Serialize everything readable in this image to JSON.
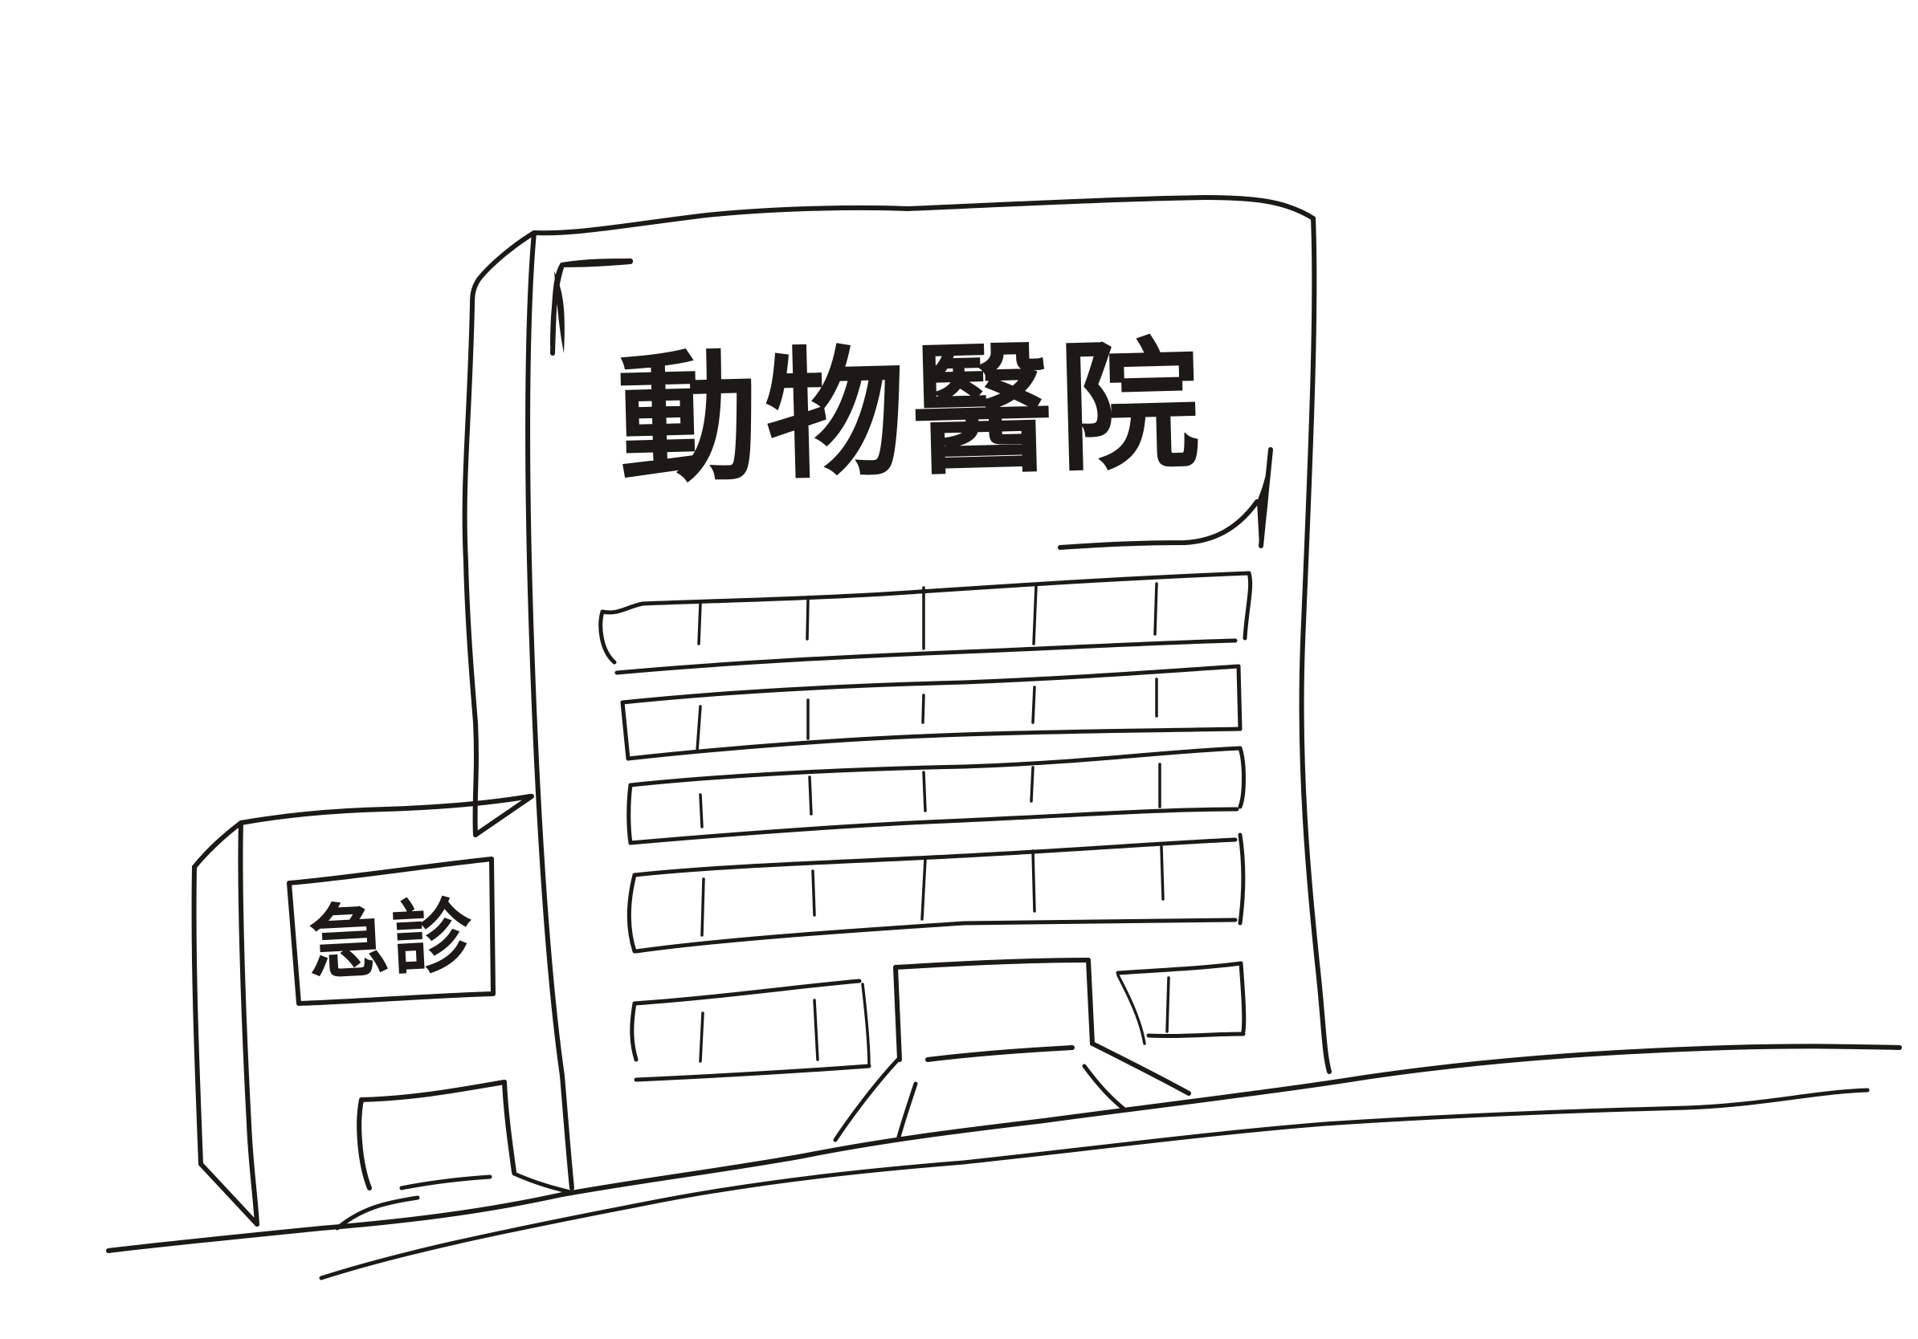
{
  "building_sign": {
    "text": "動物醫院"
  },
  "er_sign": {
    "text": "急診"
  },
  "colors": {
    "ink": "#1c1a17",
    "background": "#ffffff"
  }
}
